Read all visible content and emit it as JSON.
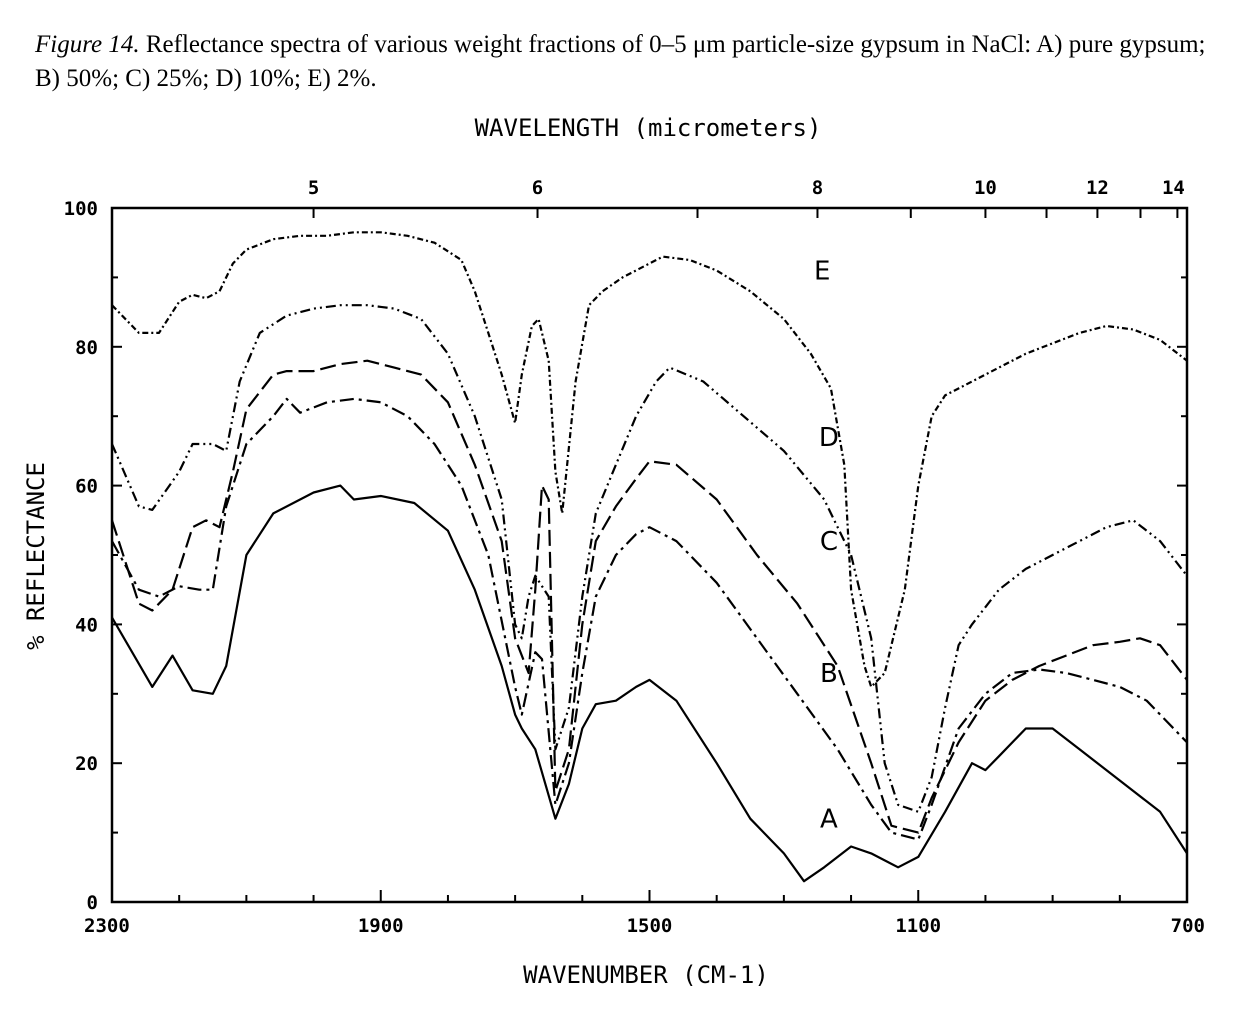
{
  "caption": {
    "label": "Figure 14.",
    "text": "Reflectance spectra of various weight fractions of 0–5 μm particle-size gypsum in NaCl: A) pure gypsum; B) 50%; C) 25%; D) 10%; E) 2%."
  },
  "chart_data": {
    "type": "line",
    "title": "",
    "xlabel": "WAVENUMBER (CM-1)",
    "ylabel": "% REFLECTANCE",
    "top_axis_label": "WAVELENGTH (micrometers)",
    "xlim": [
      2300,
      700
    ],
    "ylim": [
      0,
      100
    ],
    "x_reversed": true,
    "x_ticks": [
      2300,
      1900,
      1500,
      1100,
      700
    ],
    "x_tick_labels": [
      "2300",
      "1900",
      "1500",
      "1100",
      "700"
    ],
    "y_ticks": [
      0,
      20,
      40,
      60,
      80,
      100
    ],
    "y_tick_labels": [
      "0",
      "20",
      "40",
      "60",
      "80",
      "100"
    ],
    "top_ticks_um": [
      5,
      6,
      8,
      10,
      12,
      14
    ],
    "top_tick_labels": [
      "5",
      "6",
      "8",
      "10",
      "12",
      "14"
    ],
    "grid": false,
    "series": [
      {
        "name": "A",
        "style": "solid",
        "points": [
          [
            2300,
            41
          ],
          [
            2240,
            31
          ],
          [
            2210,
            35.5
          ],
          [
            2180,
            30.5
          ],
          [
            2150,
            30
          ],
          [
            2130,
            34
          ],
          [
            2100,
            50
          ],
          [
            2060,
            56
          ],
          [
            2000,
            59
          ],
          [
            1960,
            60
          ],
          [
            1940,
            58
          ],
          [
            1900,
            58.5
          ],
          [
            1850,
            57.5
          ],
          [
            1800,
            53.5
          ],
          [
            1760,
            45
          ],
          [
            1720,
            34
          ],
          [
            1700,
            27
          ],
          [
            1690,
            25
          ],
          [
            1670,
            22
          ],
          [
            1640,
            12
          ],
          [
            1620,
            17
          ],
          [
            1600,
            25
          ],
          [
            1580,
            28.5
          ],
          [
            1550,
            29
          ],
          [
            1520,
            31
          ],
          [
            1500,
            32
          ],
          [
            1460,
            29
          ],
          [
            1400,
            20
          ],
          [
            1350,
            12
          ],
          [
            1300,
            7
          ],
          [
            1270,
            3
          ],
          [
            1240,
            5
          ],
          [
            1200,
            8
          ],
          [
            1170,
            7
          ],
          [
            1130,
            5
          ],
          [
            1100,
            6.5
          ],
          [
            1060,
            13
          ],
          [
            1020,
            20
          ],
          [
            1000,
            19
          ],
          [
            980,
            21
          ],
          [
            940,
            25
          ],
          [
            900,
            25
          ],
          [
            860,
            22
          ],
          [
            820,
            19
          ],
          [
            780,
            16
          ],
          [
            740,
            13
          ],
          [
            700,
            7
          ]
        ]
      },
      {
        "name": "B",
        "style": "dash-dot",
        "points": [
          [
            2300,
            52
          ],
          [
            2260,
            45
          ],
          [
            2230,
            44
          ],
          [
            2200,
            45.5
          ],
          [
            2170,
            45
          ],
          [
            2150,
            45
          ],
          [
            2130,
            57
          ],
          [
            2100,
            66
          ],
          [
            2060,
            70
          ],
          [
            2040,
            72.5
          ],
          [
            2020,
            70.5
          ],
          [
            1980,
            72
          ],
          [
            1940,
            72.5
          ],
          [
            1900,
            72
          ],
          [
            1860,
            70
          ],
          [
            1820,
            66
          ],
          [
            1780,
            60
          ],
          [
            1740,
            50
          ],
          [
            1700,
            31
          ],
          [
            1690,
            27
          ],
          [
            1670,
            36
          ],
          [
            1660,
            35
          ],
          [
            1640,
            14
          ],
          [
            1620,
            20
          ],
          [
            1600,
            33
          ],
          [
            1580,
            44
          ],
          [
            1550,
            50
          ],
          [
            1520,
            53
          ],
          [
            1500,
            54
          ],
          [
            1460,
            52
          ],
          [
            1400,
            46
          ],
          [
            1340,
            38
          ],
          [
            1280,
            30
          ],
          [
            1220,
            22
          ],
          [
            1170,
            14
          ],
          [
            1140,
            10
          ],
          [
            1100,
            9
          ],
          [
            1080,
            14
          ],
          [
            1040,
            25
          ],
          [
            1000,
            30
          ],
          [
            960,
            33
          ],
          [
            920,
            33.5
          ],
          [
            880,
            33
          ],
          [
            840,
            32
          ],
          [
            800,
            31
          ],
          [
            760,
            29
          ],
          [
            720,
            25
          ],
          [
            700,
            23
          ]
        ]
      },
      {
        "name": "C",
        "style": "dashed",
        "points": [
          [
            2300,
            55
          ],
          [
            2260,
            43
          ],
          [
            2240,
            42
          ],
          [
            2210,
            45
          ],
          [
            2180,
            54
          ],
          [
            2160,
            55
          ],
          [
            2140,
            54
          ],
          [
            2120,
            62
          ],
          [
            2100,
            71
          ],
          [
            2060,
            76
          ],
          [
            2040,
            76.5
          ],
          [
            2000,
            76.5
          ],
          [
            1960,
            77.5
          ],
          [
            1920,
            78
          ],
          [
            1880,
            77
          ],
          [
            1840,
            76
          ],
          [
            1800,
            72
          ],
          [
            1760,
            63
          ],
          [
            1720,
            52
          ],
          [
            1700,
            38
          ],
          [
            1680,
            33
          ],
          [
            1670,
            45
          ],
          [
            1660,
            60
          ],
          [
            1650,
            58
          ],
          [
            1640,
            16
          ],
          [
            1620,
            22
          ],
          [
            1600,
            40
          ],
          [
            1580,
            52
          ],
          [
            1550,
            57
          ],
          [
            1520,
            61
          ],
          [
            1500,
            63.5
          ],
          [
            1460,
            63
          ],
          [
            1400,
            58
          ],
          [
            1340,
            50
          ],
          [
            1280,
            43
          ],
          [
            1220,
            34
          ],
          [
            1170,
            20
          ],
          [
            1140,
            11
          ],
          [
            1100,
            10
          ],
          [
            1080,
            15
          ],
          [
            1040,
            23
          ],
          [
            1000,
            29
          ],
          [
            960,
            32
          ],
          [
            920,
            34
          ],
          [
            880,
            35.5
          ],
          [
            840,
            37
          ],
          [
            800,
            37.5
          ],
          [
            770,
            38
          ],
          [
            740,
            37
          ],
          [
            700,
            32
          ]
        ]
      },
      {
        "name": "D",
        "style": "dash-dot-dot",
        "points": [
          [
            2300,
            66
          ],
          [
            2260,
            57
          ],
          [
            2240,
            56.5
          ],
          [
            2200,
            62
          ],
          [
            2180,
            66
          ],
          [
            2150,
            66
          ],
          [
            2130,
            65
          ],
          [
            2110,
            75
          ],
          [
            2080,
            82
          ],
          [
            2040,
            84.5
          ],
          [
            2000,
            85.5
          ],
          [
            1960,
            86
          ],
          [
            1920,
            86
          ],
          [
            1880,
            85.5
          ],
          [
            1840,
            84
          ],
          [
            1800,
            79
          ],
          [
            1760,
            70
          ],
          [
            1720,
            58
          ],
          [
            1700,
            40
          ],
          [
            1690,
            38
          ],
          [
            1680,
            44
          ],
          [
            1670,
            47
          ],
          [
            1650,
            44
          ],
          [
            1640,
            22
          ],
          [
            1620,
            28
          ],
          [
            1600,
            44
          ],
          [
            1580,
            56
          ],
          [
            1550,
            63
          ],
          [
            1520,
            70
          ],
          [
            1490,
            75
          ],
          [
            1470,
            77
          ],
          [
            1420,
            75
          ],
          [
            1360,
            70
          ],
          [
            1300,
            65
          ],
          [
            1240,
            58
          ],
          [
            1200,
            50
          ],
          [
            1170,
            38
          ],
          [
            1150,
            20
          ],
          [
            1130,
            14
          ],
          [
            1100,
            13
          ],
          [
            1080,
            18
          ],
          [
            1060,
            28
          ],
          [
            1040,
            37
          ],
          [
            1020,
            40
          ],
          [
            980,
            45
          ],
          [
            940,
            48
          ],
          [
            900,
            50
          ],
          [
            860,
            52
          ],
          [
            820,
            54
          ],
          [
            780,
            55
          ],
          [
            740,
            52
          ],
          [
            700,
            47
          ]
        ]
      },
      {
        "name": "E",
        "style": "dotted",
        "points": [
          [
            2300,
            86
          ],
          [
            2260,
            82
          ],
          [
            2230,
            82
          ],
          [
            2200,
            86.5
          ],
          [
            2180,
            87.5
          ],
          [
            2160,
            87
          ],
          [
            2140,
            88
          ],
          [
            2120,
            92
          ],
          [
            2100,
            94
          ],
          [
            2060,
            95.5
          ],
          [
            2020,
            96
          ],
          [
            1980,
            96
          ],
          [
            1940,
            96.5
          ],
          [
            1900,
            96.5
          ],
          [
            1860,
            96
          ],
          [
            1820,
            95
          ],
          [
            1780,
            92.5
          ],
          [
            1760,
            88
          ],
          [
            1740,
            82
          ],
          [
            1720,
            76
          ],
          [
            1700,
            69
          ],
          [
            1690,
            76
          ],
          [
            1675,
            83
          ],
          [
            1665,
            84
          ],
          [
            1650,
            78
          ],
          [
            1640,
            62
          ],
          [
            1630,
            56
          ],
          [
            1610,
            75
          ],
          [
            1590,
            86
          ],
          [
            1570,
            88
          ],
          [
            1540,
            90
          ],
          [
            1500,
            92
          ],
          [
            1480,
            93
          ],
          [
            1440,
            92.5
          ],
          [
            1400,
            91
          ],
          [
            1350,
            88
          ],
          [
            1300,
            84
          ],
          [
            1260,
            79
          ],
          [
            1230,
            74
          ],
          [
            1210,
            63
          ],
          [
            1200,
            45
          ],
          [
            1180,
            34
          ],
          [
            1170,
            31
          ],
          [
            1150,
            33
          ],
          [
            1120,
            45
          ],
          [
            1100,
            60
          ],
          [
            1080,
            70
          ],
          [
            1060,
            73
          ],
          [
            1020,
            75
          ],
          [
            980,
            77
          ],
          [
            940,
            79
          ],
          [
            900,
            80.5
          ],
          [
            860,
            82
          ],
          [
            820,
            83
          ],
          [
            780,
            82.5
          ],
          [
            740,
            81
          ],
          [
            700,
            78
          ]
        ]
      }
    ],
    "curve_labels": [
      {
        "text": "E",
        "x": 1243,
        "y": 91
      },
      {
        "text": "D",
        "x": 1233,
        "y": 67
      },
      {
        "text": "C",
        "x": 1233,
        "y": 52
      },
      {
        "text": "B",
        "x": 1233,
        "y": 33
      },
      {
        "text": "A",
        "x": 1233,
        "y": 12
      }
    ]
  }
}
